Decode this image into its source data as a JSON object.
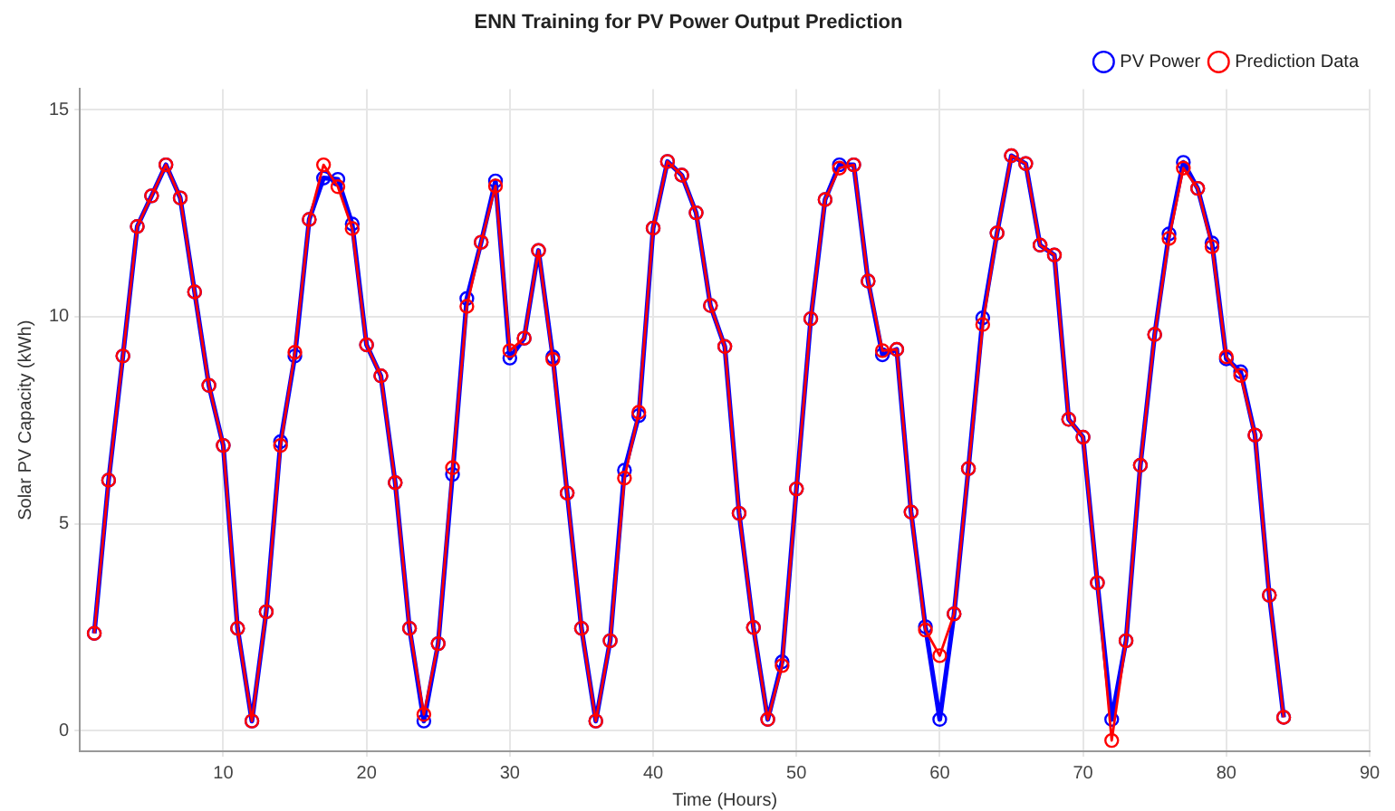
{
  "chart_data": {
    "type": "line",
    "title": "ENN Training for PV Power Output Prediction",
    "xlabel": "Time (Hours)",
    "ylabel": "Solar PV Capacity (kWh)",
    "x": [
      1,
      2,
      3,
      4,
      5,
      6,
      7,
      8,
      9,
      10,
      11,
      12,
      13,
      14,
      15,
      16,
      17,
      18,
      19,
      20,
      21,
      22,
      23,
      24,
      25,
      26,
      27,
      28,
      29,
      30,
      31,
      32,
      33,
      34,
      35,
      36,
      37,
      38,
      39,
      40,
      41,
      42,
      43,
      44,
      45,
      46,
      47,
      48,
      49,
      50,
      51,
      52,
      53,
      54,
      55,
      56,
      57,
      58,
      59,
      60,
      61,
      62,
      63,
      64,
      65,
      66,
      67,
      68,
      69,
      70,
      71,
      72,
      73,
      74,
      75,
      76,
      77,
      78,
      79,
      80,
      81,
      82,
      83,
      84
    ],
    "series": [
      {
        "name": "PV Power",
        "color": "#0000ff",
        "values": [
          2.35,
          6.05,
          9.05,
          12.18,
          12.92,
          13.67,
          12.87,
          10.6,
          8.34,
          6.89,
          2.47,
          0.23,
          2.87,
          6.98,
          9.05,
          12.35,
          13.35,
          13.32,
          12.24,
          9.32,
          8.57,
          5.99,
          2.47,
          0.23,
          2.1,
          6.19,
          10.44,
          11.8,
          13.28,
          9.0,
          9.48,
          11.6,
          9.03,
          5.74,
          2.47,
          0.23,
          2.17,
          6.29,
          7.61,
          12.14,
          13.75,
          13.42,
          12.51,
          10.27,
          9.28,
          5.25,
          2.49,
          0.27,
          1.66,
          5.84,
          9.95,
          12.83,
          13.67,
          13.67,
          10.86,
          9.08,
          9.21,
          5.28,
          2.51,
          0.27,
          2.82,
          6.33,
          9.97,
          12.02,
          13.89,
          13.7,
          11.73,
          11.49,
          7.52,
          7.09,
          3.57,
          0.27,
          2.17,
          6.41,
          9.57,
          12.0,
          13.73,
          13.1,
          11.78,
          8.98,
          8.67,
          7.14,
          3.27,
          0.32
        ]
      },
      {
        "name": "Prediction Data",
        "color": "#ff0000",
        "values": [
          2.35,
          6.05,
          9.05,
          12.18,
          12.92,
          13.67,
          12.87,
          10.6,
          8.34,
          6.89,
          2.47,
          0.23,
          2.87,
          6.89,
          9.14,
          12.35,
          13.67,
          13.14,
          12.13,
          9.32,
          8.57,
          5.99,
          2.47,
          0.39,
          2.1,
          6.35,
          10.25,
          11.8,
          13.16,
          9.18,
          9.48,
          11.6,
          8.97,
          5.74,
          2.47,
          0.23,
          2.17,
          6.1,
          7.69,
          12.14,
          13.75,
          13.42,
          12.51,
          10.27,
          9.28,
          5.25,
          2.49,
          0.27,
          1.57,
          5.84,
          9.95,
          12.83,
          13.59,
          13.67,
          10.86,
          9.18,
          9.21,
          5.28,
          2.43,
          1.81,
          2.82,
          6.33,
          9.81,
          12.02,
          13.89,
          13.7,
          11.73,
          11.49,
          7.52,
          7.09,
          3.57,
          -0.24,
          2.17,
          6.41,
          9.57,
          11.89,
          13.59,
          13.1,
          11.69,
          9.03,
          8.58,
          7.14,
          3.27,
          0.32
        ]
      }
    ],
    "xlim": [
      0,
      90
    ],
    "xticks": [
      10,
      20,
      30,
      40,
      50,
      60,
      70,
      80,
      90
    ],
    "ylim": [
      -0.5,
      15.5
    ],
    "yticks": [
      0,
      5,
      10,
      15
    ],
    "grid": true,
    "legend": "top right",
    "marker": "circle",
    "line_style": "solid"
  }
}
